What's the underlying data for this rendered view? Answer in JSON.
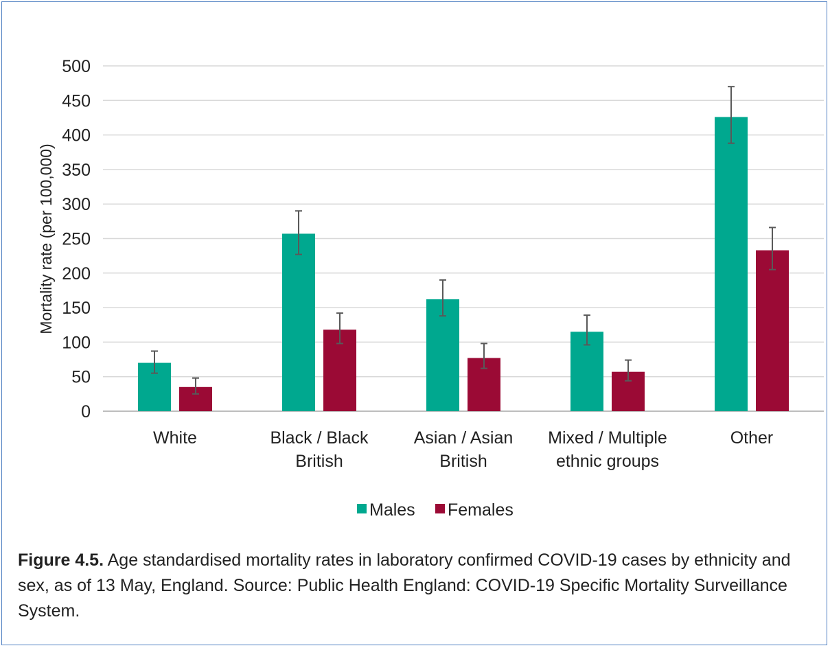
{
  "chart_data": {
    "type": "bar",
    "ylabel": "Mortality rate (per 100,000)",
    "ylim": [
      0,
      500
    ],
    "yticks": [
      0,
      50,
      100,
      150,
      200,
      250,
      300,
      350,
      400,
      450,
      500
    ],
    "grid": true,
    "legend_position": "bottom",
    "categories": [
      [
        "White"
      ],
      [
        "Black / Black",
        "British"
      ],
      [
        "Asian / Asian",
        "British"
      ],
      [
        "Mixed / Multiple",
        "ethnic groups"
      ],
      [
        "Other"
      ]
    ],
    "series": [
      {
        "name": "Males",
        "color": "#00a88f",
        "values": [
          70,
          257,
          162,
          115,
          426
        ],
        "err_low": [
          55,
          227,
          138,
          96,
          388
        ],
        "err_high": [
          87,
          290,
          190,
          139,
          470
        ]
      },
      {
        "name": "Females",
        "color": "#9b0a35",
        "values": [
          35,
          118,
          77,
          57,
          233
        ],
        "err_low": [
          25,
          98,
          62,
          44,
          205
        ],
        "err_high": [
          48,
          142,
          98,
          74,
          266
        ]
      }
    ]
  },
  "caption": {
    "figure_label": "Figure 4.5.",
    "text": " Age standardised mortality rates in laboratory confirmed COVID-19 cases by ethnicity and sex, as of 13 May, England. Source: Public Health England: COVID-19 Specific Mortality Surveillance System."
  }
}
